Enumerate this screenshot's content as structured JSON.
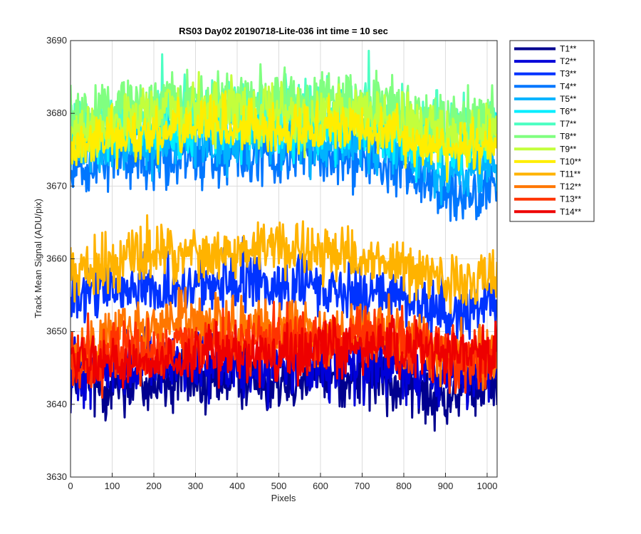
{
  "chart_data": {
    "type": "line",
    "title": "RS03 Day02 20190718-Lite-036 int time = 10 sec",
    "xlabel": "Pixels",
    "ylabel": "Track Mean Signal (ADU/pix)",
    "xlim": [
      0,
      1024
    ],
    "ylim": [
      3630,
      3690
    ],
    "x_ticks": [
      0,
      100,
      200,
      300,
      400,
      500,
      600,
      700,
      800,
      900,
      1000
    ],
    "y_ticks": [
      3630,
      3640,
      3650,
      3660,
      3670,
      3680,
      3690
    ],
    "grid": true,
    "legend_position": "outside-top-right",
    "x_samples": [
      0,
      64,
      128,
      192,
      256,
      320,
      384,
      448,
      512,
      576,
      640,
      704,
      768,
      832,
      896,
      960,
      1024
    ],
    "series": [
      {
        "name": "T1**",
        "color": "#00008f",
        "noise": 2.3,
        "values": [
          3643,
          3643,
          3643,
          3643,
          3643,
          3643,
          3644,
          3644,
          3644,
          3644,
          3644,
          3644,
          3643,
          3642,
          3641,
          3642,
          3643
        ]
      },
      {
        "name": "T2**",
        "color": "#0000d9",
        "noise": 2.3,
        "values": [
          3645,
          3645,
          3645,
          3645,
          3645,
          3645,
          3645,
          3645,
          3646,
          3646,
          3646,
          3646,
          3645,
          3644,
          3644,
          3645,
          3646
        ]
      },
      {
        "name": "T3**",
        "color": "#0033ff",
        "noise": 2.0,
        "values": [
          3654,
          3655,
          3656,
          3656,
          3656,
          3656,
          3657,
          3657,
          3656,
          3656,
          3656,
          3655,
          3655,
          3654,
          3653,
          3653,
          3654
        ]
      },
      {
        "name": "T4**",
        "color": "#0077ff",
        "noise": 2.0,
        "values": [
          3673,
          3673,
          3674,
          3674,
          3674,
          3674,
          3674,
          3674,
          3674,
          3674,
          3674,
          3674,
          3673,
          3672,
          3669,
          3669,
          3670
        ]
      },
      {
        "name": "T5**",
        "color": "#00b3ff",
        "noise": 2.0,
        "values": [
          3675,
          3675,
          3676,
          3676,
          3676,
          3676,
          3676,
          3676,
          3676,
          3676,
          3676,
          3676,
          3675,
          3674,
          3671,
          3672,
          3673
        ]
      },
      {
        "name": "T6**",
        "color": "#00eeff",
        "noise": 2.0,
        "values": [
          3677,
          3677,
          3678,
          3678,
          3678,
          3678,
          3678,
          3678,
          3678,
          3678,
          3678,
          3678,
          3677,
          3676,
          3676,
          3676,
          3677
        ]
      },
      {
        "name": "T7**",
        "color": "#4dffc3",
        "noise": 2.0,
        "values": [
          3679,
          3679,
          3680,
          3680,
          3681,
          3681,
          3681,
          3681,
          3681,
          3681,
          3681,
          3681,
          3680,
          3679,
          3678,
          3678,
          3679
        ]
      },
      {
        "name": "T8**",
        "color": "#80ff80",
        "noise": 2.0,
        "values": [
          3680,
          3680,
          3681,
          3681,
          3682,
          3682,
          3682,
          3682,
          3682,
          3682,
          3682,
          3682,
          3681,
          3680,
          3679,
          3679,
          3680
        ]
      },
      {
        "name": "T9**",
        "color": "#c3ff3c",
        "noise": 2.0,
        "values": [
          3678,
          3678,
          3679,
          3680,
          3680,
          3680,
          3680,
          3680,
          3680,
          3680,
          3680,
          3680,
          3679,
          3678,
          3677,
          3677,
          3678
        ]
      },
      {
        "name": "T10**",
        "color": "#ffee00",
        "noise": 1.8,
        "values": [
          3675,
          3676,
          3677,
          3677,
          3678,
          3678,
          3678,
          3678,
          3678,
          3678,
          3678,
          3677,
          3677,
          3676,
          3675,
          3675,
          3676
        ]
      },
      {
        "name": "T11**",
        "color": "#ffb300",
        "noise": 2.0,
        "values": [
          3659,
          3659,
          3660,
          3661,
          3661,
          3661,
          3661,
          3661,
          3661,
          3661,
          3661,
          3660,
          3660,
          3659,
          3657,
          3657,
          3658
        ]
      },
      {
        "name": "T12**",
        "color": "#ff7700",
        "noise": 2.0,
        "values": [
          3647,
          3648,
          3650,
          3651,
          3652,
          3651,
          3651,
          3651,
          3650,
          3650,
          3650,
          3650,
          3650,
          3649,
          3647,
          3646,
          3647
        ]
      },
      {
        "name": "T13**",
        "color": "#ff3300",
        "noise": 2.0,
        "values": [
          3646,
          3646,
          3647,
          3647,
          3648,
          3648,
          3648,
          3649,
          3649,
          3649,
          3649,
          3649,
          3649,
          3648,
          3646,
          3646,
          3647
        ]
      },
      {
        "name": "T14**",
        "color": "#ee0000",
        "noise": 1.8,
        "values": [
          3646,
          3646,
          3646,
          3646,
          3646,
          3647,
          3647,
          3647,
          3647,
          3648,
          3648,
          3648,
          3648,
          3648,
          3647,
          3647,
          3648
        ]
      }
    ]
  }
}
